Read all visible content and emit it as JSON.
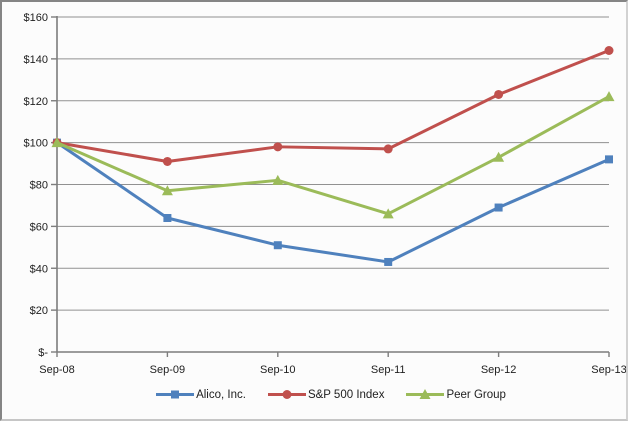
{
  "chart_data": {
    "type": "line",
    "title": "",
    "xlabel": "",
    "ylabel": "",
    "categories": [
      "Sep-08",
      "Sep-09",
      "Sep-10",
      "Sep-11",
      "Sep-12",
      "Sep-13"
    ],
    "series": [
      {
        "name": "Alico, Inc.",
        "marker": "square",
        "color": "#4F81BD",
        "values": [
          100,
          64,
          51,
          43,
          69,
          92
        ]
      },
      {
        "name": "S&P 500 Index",
        "marker": "circle",
        "color": "#C0504D",
        "values": [
          100,
          91,
          98,
          97,
          123,
          144
        ]
      },
      {
        "name": "Peer Group",
        "marker": "triangle",
        "color": "#9BBB59",
        "values": [
          100,
          77,
          82,
          66,
          93,
          122
        ]
      }
    ],
    "ylim": [
      0,
      160
    ],
    "y_step": 20,
    "y_tick_labels": [
      "$-",
      "$20",
      "$40",
      "$60",
      "$80",
      "$100",
      "$120",
      "$140",
      "$160"
    ],
    "grid": true,
    "legend_position": "bottom"
  },
  "style": {
    "gridline_color": "#919191",
    "axis_color": "#7d7d7d",
    "tick_color": "#7d7d7d",
    "text_color": "#212121",
    "plot_background": "#fcfcfc",
    "line_width": 3
  }
}
